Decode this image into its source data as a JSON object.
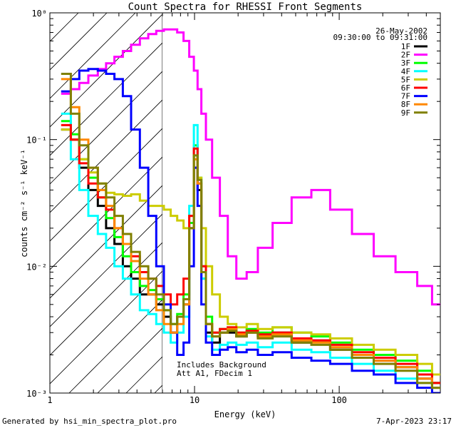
{
  "chart_data": {
    "type": "line",
    "title": "Count Spectra for RHESSI Front Segments",
    "xlabel": "Energy (keV)",
    "ylabel": "counts cm⁻² s⁻¹ keV⁻¹",
    "xscale": "log",
    "yscale": "log",
    "xlim": [
      1,
      500
    ],
    "ylim": [
      0.001,
      1
    ],
    "xticks": [
      {
        "value": 1,
        "label": "1"
      },
      {
        "value": 10,
        "label": "10"
      },
      {
        "value": 100,
        "label": "100"
      }
    ],
    "yticks": [
      {
        "value": 1,
        "label": "10⁰"
      },
      {
        "value": 0.1,
        "label": "10⁻¹"
      },
      {
        "value": 0.01,
        "label": "10⁻²"
      },
      {
        "value": 0.001,
        "label": "10⁻³"
      }
    ],
    "date": "26-May-2002",
    "time_range": "09:30:00 to 09:31:00",
    "hatched_region_below_keV": 6,
    "annotation_lines": [
      "Includes Background",
      "Att A1, FDecim 1"
    ],
    "legend_position": "top-right",
    "series": [
      {
        "name": "1F",
        "color": "#000000",
        "x": [
          1.3,
          1.5,
          1.7,
          2.0,
          2.3,
          2.6,
          3.0,
          3.4,
          3.9,
          4.5,
          5.1,
          5.8,
          6.5,
          7.2,
          8.0,
          8.8,
          9.6,
          10.2,
          10.8,
          11.5,
          12.5,
          14,
          16,
          18,
          21,
          25,
          30,
          40,
          55,
          75,
          100,
          150,
          200,
          300,
          400,
          480
        ],
        "y": [
          0.12,
          0.1,
          0.06,
          0.04,
          0.03,
          0.02,
          0.015,
          0.01,
          0.008,
          0.006,
          0.006,
          0.005,
          0.004,
          0.003,
          0.004,
          0.005,
          0.02,
          0.06,
          0.04,
          0.008,
          0.003,
          0.0025,
          0.003,
          0.003,
          0.0028,
          0.003,
          0.0028,
          0.003,
          0.0025,
          0.0026,
          0.0022,
          0.002,
          0.0018,
          0.0016,
          0.0013,
          0.0012
        ]
      },
      {
        "name": "2F",
        "color": "#ff00ff",
        "x": [
          1.3,
          1.5,
          1.7,
          2.0,
          2.3,
          2.6,
          3.0,
          3.4,
          3.9,
          4.5,
          5.1,
          5.8,
          6.5,
          7.2,
          8.0,
          8.8,
          9.6,
          10.2,
          10.8,
          11.5,
          12.5,
          14,
          16,
          18,
          21,
          25,
          30,
          40,
          55,
          75,
          100,
          150,
          200,
          300,
          400,
          480
        ],
        "y": [
          0.23,
          0.25,
          0.28,
          0.32,
          0.36,
          0.4,
          0.45,
          0.5,
          0.56,
          0.63,
          0.68,
          0.72,
          0.74,
          0.74,
          0.7,
          0.6,
          0.45,
          0.35,
          0.25,
          0.16,
          0.1,
          0.05,
          0.025,
          0.012,
          0.008,
          0.009,
          0.014,
          0.022,
          0.035,
          0.04,
          0.028,
          0.018,
          0.012,
          0.009,
          0.007,
          0.005
        ]
      },
      {
        "name": "3F",
        "color": "#00ff00",
        "x": [
          1.3,
          1.5,
          1.7,
          2.0,
          2.3,
          2.6,
          3.0,
          3.4,
          3.9,
          4.5,
          5.1,
          5.8,
          6.5,
          7.2,
          8.0,
          8.8,
          9.6,
          10.2,
          10.8,
          11.5,
          12.5,
          14,
          16,
          18,
          21,
          25,
          30,
          40,
          55,
          75,
          100,
          150,
          200,
          300,
          400,
          480
        ],
        "y": [
          0.14,
          0.11,
          0.07,
          0.05,
          0.035,
          0.024,
          0.017,
          0.012,
          0.009,
          0.007,
          0.0065,
          0.0055,
          0.0045,
          0.0035,
          0.0042,
          0.006,
          0.022,
          0.09,
          0.05,
          0.01,
          0.004,
          0.003,
          0.0032,
          0.0033,
          0.003,
          0.0032,
          0.003,
          0.0033,
          0.003,
          0.0028,
          0.0025,
          0.0022,
          0.002,
          0.0018,
          0.0015,
          0.0012
        ]
      },
      {
        "name": "4F",
        "color": "#00ffff",
        "x": [
          1.3,
          1.5,
          1.7,
          2.0,
          2.3,
          2.6,
          3.0,
          3.4,
          3.9,
          4.5,
          5.1,
          5.8,
          6.5,
          7.2,
          8.0,
          8.8,
          9.6,
          10.2,
          10.8,
          11.5,
          12.5,
          14,
          16,
          18,
          21,
          25,
          30,
          40,
          55,
          75,
          100,
          150,
          200,
          300,
          400,
          480
        ],
        "y": [
          0.16,
          0.07,
          0.04,
          0.025,
          0.018,
          0.014,
          0.01,
          0.008,
          0.006,
          0.0045,
          0.0042,
          0.0035,
          0.003,
          0.0025,
          0.003,
          0.004,
          0.03,
          0.13,
          0.05,
          0.008,
          0.0028,
          0.0022,
          0.0024,
          0.0025,
          0.0024,
          0.0025,
          0.0023,
          0.0025,
          0.0022,
          0.0021,
          0.0019,
          0.0017,
          0.0015,
          0.0013,
          0.0012,
          0.0011
        ]
      },
      {
        "name": "5F",
        "color": "#cccc00",
        "x": [
          1.3,
          1.5,
          1.7,
          2.0,
          2.3,
          2.6,
          3.0,
          3.4,
          3.9,
          4.5,
          5.1,
          5.8,
          6.5,
          7.2,
          8.0,
          8.8,
          9.6,
          10.2,
          10.8,
          11.5,
          12.5,
          14,
          16,
          18,
          21,
          25,
          30,
          40,
          55,
          75,
          100,
          150,
          200,
          300,
          400,
          480
        ],
        "y": [
          0.12,
          0.1,
          0.07,
          0.055,
          0.045,
          0.038,
          0.037,
          0.036,
          0.037,
          0.033,
          0.03,
          0.03,
          0.028,
          0.025,
          0.023,
          0.02,
          0.025,
          0.07,
          0.05,
          0.02,
          0.01,
          0.006,
          0.004,
          0.0035,
          0.0033,
          0.0035,
          0.0032,
          0.0033,
          0.003,
          0.0029,
          0.0027,
          0.0024,
          0.0022,
          0.002,
          0.0017,
          0.0014
        ]
      },
      {
        "name": "6F",
        "color": "#ff0000",
        "x": [
          1.3,
          1.5,
          1.7,
          2.0,
          2.3,
          2.6,
          3.0,
          3.4,
          3.9,
          4.5,
          5.1,
          5.8,
          6.5,
          7.2,
          8.0,
          8.8,
          9.6,
          10.2,
          10.8,
          11.5,
          12.5,
          14,
          16,
          18,
          21,
          25,
          30,
          40,
          55,
          75,
          100,
          150,
          200,
          300,
          400,
          480
        ],
        "y": [
          0.13,
          0.1,
          0.065,
          0.045,
          0.035,
          0.028,
          0.02,
          0.015,
          0.012,
          0.009,
          0.008,
          0.007,
          0.006,
          0.005,
          0.006,
          0.008,
          0.025,
          0.085,
          0.045,
          0.01,
          0.0035,
          0.003,
          0.0032,
          0.0033,
          0.003,
          0.0031,
          0.0029,
          0.003,
          0.0027,
          0.0026,
          0.0024,
          0.0021,
          0.0019,
          0.0017,
          0.0014,
          0.0012
        ]
      },
      {
        "name": "7F",
        "color": "#0000ff",
        "x": [
          1.3,
          1.5,
          1.7,
          2.0,
          2.3,
          2.6,
          3.0,
          3.4,
          3.9,
          4.5,
          5.1,
          5.8,
          6.5,
          7.2,
          8.0,
          8.8,
          9.6,
          10.2,
          10.8,
          11.5,
          12.5,
          14,
          16,
          18,
          21,
          25,
          30,
          40,
          55,
          75,
          100,
          150,
          200,
          300,
          400,
          480
        ],
        "y": [
          0.24,
          0.3,
          0.35,
          0.36,
          0.35,
          0.33,
          0.3,
          0.22,
          0.12,
          0.06,
          0.025,
          0.01,
          0.005,
          0.003,
          0.002,
          0.0025,
          0.01,
          0.06,
          0.03,
          0.005,
          0.0025,
          0.002,
          0.0022,
          0.0023,
          0.0021,
          0.0022,
          0.002,
          0.0021,
          0.0019,
          0.0018,
          0.0017,
          0.0015,
          0.0014,
          0.0012,
          0.0011,
          0.001
        ]
      },
      {
        "name": "8F",
        "color": "#ff8800",
        "x": [
          1.3,
          1.5,
          1.7,
          2.0,
          2.3,
          2.6,
          3.0,
          3.4,
          3.9,
          4.5,
          5.1,
          5.8,
          6.5,
          7.2,
          8.0,
          8.8,
          9.6,
          10.2,
          10.8,
          11.5,
          12.5,
          14,
          16,
          18,
          21,
          25,
          30,
          40,
          55,
          75,
          100,
          150,
          200,
          300,
          400,
          480
        ],
        "y": [
          0.3,
          0.18,
          0.1,
          0.06,
          0.04,
          0.03,
          0.02,
          0.015,
          0.011,
          0.008,
          0.006,
          0.0045,
          0.0035,
          0.003,
          0.0035,
          0.005,
          0.02,
          0.07,
          0.045,
          0.009,
          0.0035,
          0.0028,
          0.003,
          0.0032,
          0.0029,
          0.003,
          0.0028,
          0.0029,
          0.0026,
          0.0025,
          0.0023,
          0.002,
          0.0018,
          0.0016,
          0.0013,
          0.0011
        ]
      },
      {
        "name": "9F",
        "color": "#808000",
        "x": [
          1.3,
          1.5,
          1.7,
          2.0,
          2.3,
          2.6,
          3.0,
          3.4,
          3.9,
          4.5,
          5.1,
          5.8,
          6.5,
          7.2,
          8.0,
          8.8,
          9.6,
          10.2,
          10.8,
          11.5,
          12.5,
          14,
          16,
          18,
          21,
          25,
          30,
          40,
          55,
          75,
          100,
          150,
          200,
          300,
          400,
          480
        ],
        "y": [
          0.33,
          0.16,
          0.09,
          0.06,
          0.045,
          0.035,
          0.025,
          0.018,
          0.013,
          0.01,
          0.008,
          0.006,
          0.0045,
          0.0035,
          0.004,
          0.0055,
          0.02,
          0.075,
          0.048,
          0.009,
          0.0035,
          0.0028,
          0.003,
          0.0031,
          0.0028,
          0.003,
          0.0027,
          0.0028,
          0.0025,
          0.0024,
          0.0022,
          0.0019,
          0.0017,
          0.0015,
          0.0012,
          0.0011
        ]
      }
    ]
  },
  "footer": {
    "left": "Generated by hsi_min_spectra_plot.pro",
    "right": "7-Apr-2023 23:17"
  }
}
